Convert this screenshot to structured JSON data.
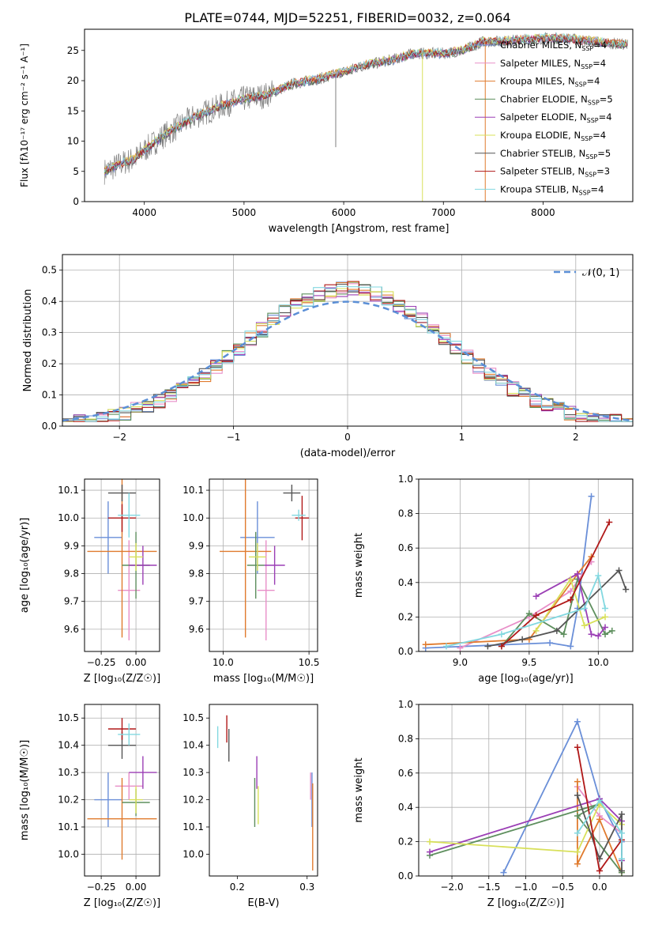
{
  "title": "PLATE=0744, MJD=52251, FIBERID=0032, z=0.064",
  "series": [
    {
      "name": "Chabrier MILES",
      "nssp": "4",
      "color": "#6a8fd8"
    },
    {
      "name": "Salpeter MILES",
      "nssp": "4",
      "color": "#e88fc8"
    },
    {
      "name": "Kroupa MILES",
      "nssp": "4",
      "color": "#e07b2e"
    },
    {
      "name": "Chabrier ELODIE",
      "nssp": "5",
      "color": "#5e8f5e"
    },
    {
      "name": "Salpeter ELODIE",
      "nssp": "4",
      "color": "#9b3fb5"
    },
    {
      "name": "Kroupa ELODIE",
      "nssp": "4",
      "color": "#d8e05a"
    },
    {
      "name": "Chabrier STELIB",
      "nssp": "5",
      "color": "#555555"
    },
    {
      "name": "Salpeter STELIB",
      "nssp": "3",
      "color": "#b01818"
    },
    {
      "name": "Kroupa STELIB",
      "nssp": "4",
      "color": "#82d8e0"
    }
  ],
  "chart_data": [
    {
      "id": "spectrum",
      "type": "line",
      "xlabel": "wavelength [Angstrom, rest frame]",
      "ylabel": "Flux [fλ10⁻¹⁷ erg cm⁻² s⁻¹ A⁻¹]",
      "xlim": [
        3400,
        8900
      ],
      "ylim": [
        0,
        28.5
      ],
      "xticks": [
        4000,
        5000,
        6000,
        7000,
        8000
      ],
      "yticks": [
        0,
        5,
        10,
        15,
        20,
        25
      ],
      "grid": false,
      "legend": "right",
      "continuum": {
        "x": [
          3600,
          3800,
          3900,
          4000,
          4200,
          4500,
          4800,
          5000,
          5200,
          5500,
          5800,
          6000,
          6200,
          6500,
          6700,
          7000,
          7200,
          7400,
          7600,
          7800,
          8000,
          8200,
          8500,
          8800
        ],
        "y": [
          5,
          6.5,
          7,
          8.5,
          11,
          14,
          16,
          17,
          17.5,
          19.5,
          20.5,
          21.5,
          22.5,
          23.5,
          24.5,
          24.5,
          25,
          26.5,
          26.5,
          26.8,
          27,
          27,
          26.5,
          26
        ]
      },
      "dips": [
        {
          "x": 5920,
          "y": 9
        },
        {
          "x": 6790,
          "y": 0
        },
        {
          "x": 7420,
          "y": 0
        }
      ]
    },
    {
      "id": "residuals",
      "type": "histogram",
      "xlabel": "(data-model)/error",
      "ylabel": "Normed distribution",
      "xlim": [
        -2.5,
        2.5
      ],
      "ylim": [
        0,
        0.55
      ],
      "xticks": [
        -2,
        -1,
        0,
        1,
        2
      ],
      "yticks": [
        0.0,
        0.1,
        0.2,
        0.3,
        0.4,
        0.5
      ],
      "grid": true,
      "legend": "top-right",
      "legend_label": "𝒩(0, 1)",
      "bin_width": 0.1,
      "peak": 0.44
    },
    {
      "id": "age-vs-Z",
      "type": "errorbar",
      "xlabel": "Z [log₁₀(Z/Z☉)]",
      "ylabel": "age  [log₁₀(age/yr)]",
      "xlim": [
        -0.37,
        0.17
      ],
      "ylim": [
        9.52,
        10.14
      ],
      "xticks": [
        -0.25,
        0.0
      ],
      "yticks": [
        9.6,
        9.7,
        9.8,
        9.9,
        10.0,
        10.1
      ],
      "grid": true,
      "points": [
        {
          "x": -0.2,
          "xerr": 0.1,
          "y": 9.93,
          "yerr": 0.13
        },
        {
          "x": -0.05,
          "xerr": 0.08,
          "y": 9.74,
          "yerr": 0.18
        },
        {
          "x": -0.1,
          "xerr": 0.25,
          "y": 9.88,
          "yerr": 0.31
        },
        {
          "x": 0.0,
          "xerr": 0.1,
          "y": 9.83,
          "yerr": 0.12
        },
        {
          "x": 0.05,
          "xerr": 0.1,
          "y": 9.83,
          "yerr": 0.07
        },
        {
          "x": 0.0,
          "xerr": 0.05,
          "y": 9.86,
          "yerr": 0.05
        },
        {
          "x": -0.1,
          "xerr": 0.1,
          "y": 10.09,
          "yerr": 0.03
        },
        {
          "x": -0.1,
          "xerr": 0.1,
          "y": 10.0,
          "yerr": 0.05
        },
        {
          "x": -0.05,
          "xerr": 0.08,
          "y": 10.01,
          "yerr": 0.08
        }
      ]
    },
    {
      "id": "age-vs-mass",
      "type": "errorbar",
      "xlabel": "mass [log₁₀(M/M☉)]",
      "ylabel": "",
      "xlim": [
        9.92,
        10.55
      ],
      "ylim": [
        9.52,
        10.14
      ],
      "xticks": [
        10.0,
        10.5
      ],
      "yticks": [
        9.6,
        9.7,
        9.8,
        9.9,
        10.0,
        10.1
      ],
      "grid": true,
      "points": [
        {
          "x": 10.2,
          "xerr": 0.1,
          "y": 9.93,
          "yerr": 0.13
        },
        {
          "x": 10.25,
          "xerr": 0.05,
          "y": 9.74,
          "yerr": 0.18
        },
        {
          "x": 10.13,
          "xerr": 0.15,
          "y": 9.88,
          "yerr": 0.31
        },
        {
          "x": 10.19,
          "xerr": 0.05,
          "y": 9.83,
          "yerr": 0.12
        },
        {
          "x": 10.3,
          "xerr": 0.06,
          "y": 9.83,
          "yerr": 0.07
        },
        {
          "x": 10.2,
          "xerr": 0.05,
          "y": 9.86,
          "yerr": 0.05
        },
        {
          "x": 10.4,
          "xerr": 0.05,
          "y": 10.09,
          "yerr": 0.03
        },
        {
          "x": 10.46,
          "xerr": 0.04,
          "y": 10.0,
          "yerr": 0.08
        },
        {
          "x": 10.44,
          "xerr": 0.04,
          "y": 10.01,
          "yerr": 0.02
        }
      ]
    },
    {
      "id": "weight-vs-age",
      "type": "line",
      "xlabel": "age  [log₁₀(age/yr)]",
      "ylabel": "mass weight",
      "xlim": [
        8.7,
        10.25
      ],
      "ylim": [
        0,
        1.0
      ],
      "xticks": [
        9.0,
        9.5,
        10.0
      ],
      "yticks": [
        0.0,
        0.2,
        0.4,
        0.6,
        0.8,
        1.0
      ],
      "grid": true,
      "lines": [
        {
          "x": [
            8.75,
            9.65,
            9.8,
            9.85,
            9.95
          ],
          "y": [
            0.02,
            0.05,
            0.03,
            0.25,
            0.9
          ]
        },
        {
          "x": [
            9.0,
            9.5,
            9.8,
            9.95
          ],
          "y": [
            0.02,
            0.2,
            0.35,
            0.52
          ]
        },
        {
          "x": [
            8.75,
            9.5,
            9.85,
            9.95
          ],
          "y": [
            0.04,
            0.07,
            0.45,
            0.55
          ]
        },
        {
          "x": [
            9.3,
            9.5,
            9.75,
            9.85,
            10.05,
            10.1
          ],
          "y": [
            0.03,
            0.22,
            0.1,
            0.42,
            0.1,
            0.12
          ]
        },
        {
          "x": [
            9.55,
            9.85,
            9.95,
            10.0,
            10.05
          ],
          "y": [
            0.32,
            0.45,
            0.1,
            0.09,
            0.14
          ]
        },
        {
          "x": [
            9.55,
            9.8,
            9.9,
            10.05
          ],
          "y": [
            0.12,
            0.42,
            0.15,
            0.2
          ]
        },
        {
          "x": [
            9.2,
            9.45,
            9.7,
            10.15,
            10.2
          ],
          "y": [
            0.03,
            0.07,
            0.12,
            0.47,
            0.36
          ]
        },
        {
          "x": [
            9.3,
            9.55,
            9.8,
            10.08
          ],
          "y": [
            0.03,
            0.21,
            0.3,
            0.75
          ]
        },
        {
          "x": [
            8.9,
            9.3,
            9.9,
            10.0,
            10.05
          ],
          "y": [
            0.03,
            0.1,
            0.25,
            0.44,
            0.25
          ]
        }
      ]
    },
    {
      "id": "mass-vs-Z",
      "type": "errorbar",
      "xlabel": "Z [log₁₀(Z/Z☉)]",
      "ylabel": "mass [log₁₀(M/M☉)]",
      "xlim": [
        -0.37,
        0.17
      ],
      "ylim": [
        9.92,
        10.55
      ],
      "xticks": [
        -0.25,
        0.0
      ],
      "yticks": [
        10.0,
        10.1,
        10.2,
        10.3,
        10.4,
        10.5
      ],
      "grid": true,
      "points": [
        {
          "x": -0.2,
          "xerr": 0.1,
          "y": 10.2,
          "yerr": 0.1
        },
        {
          "x": -0.05,
          "xerr": 0.1,
          "y": 10.25,
          "yerr": 0.05
        },
        {
          "x": -0.1,
          "xerr": 0.25,
          "y": 10.13,
          "yerr": 0.15
        },
        {
          "x": 0.0,
          "xerr": 0.1,
          "y": 10.19,
          "yerr": 0.05
        },
        {
          "x": 0.05,
          "xerr": 0.1,
          "y": 10.3,
          "yerr": 0.06
        },
        {
          "x": 0.0,
          "xerr": 0.05,
          "y": 10.2,
          "yerr": 0.05
        },
        {
          "x": -0.1,
          "xerr": 0.1,
          "y": 10.4,
          "yerr": 0.05
        },
        {
          "x": -0.1,
          "xerr": 0.1,
          "y": 10.46,
          "yerr": 0.04
        },
        {
          "x": -0.05,
          "xerr": 0.08,
          "y": 10.44,
          "yerr": 0.04
        }
      ]
    },
    {
      "id": "mass-vs-EBV",
      "type": "errorbar",
      "xlabel": "E(B-V)",
      "ylabel": "",
      "xlim": [
        0.16,
        0.315
      ],
      "ylim": [
        9.92,
        10.55
      ],
      "xticks": [
        0.2,
        0.3
      ],
      "yticks": [
        10.0,
        10.1,
        10.2,
        10.3,
        10.4,
        10.5
      ],
      "grid": false,
      "points": [
        {
          "x": 0.307,
          "y": 10.2,
          "yerr": 0.1
        },
        {
          "x": 0.305,
          "y": 10.25,
          "yerr": 0.05
        },
        {
          "x": 0.308,
          "y": 10.1,
          "yerr": 0.16
        },
        {
          "x": 0.225,
          "y": 10.19,
          "yerr": 0.09
        },
        {
          "x": 0.228,
          "y": 10.3,
          "yerr": 0.06
        },
        {
          "x": 0.23,
          "y": 10.18,
          "yerr": 0.07
        },
        {
          "x": 0.188,
          "y": 10.4,
          "yerr": 0.06
        },
        {
          "x": 0.185,
          "y": 10.46,
          "yerr": 0.05
        },
        {
          "x": 0.172,
          "y": 10.43,
          "yerr": 0.04
        }
      ]
    },
    {
      "id": "weight-vs-Z",
      "type": "line",
      "xlabel": "Z [log₁₀(Z/Z☉)]",
      "ylabel": "mass weight",
      "xlim": [
        -2.45,
        0.45
      ],
      "ylim": [
        0,
        1.0
      ],
      "xticks": [
        -2.0,
        -1.5,
        -1.0,
        -0.5,
        0.0
      ],
      "yticks": [
        0.0,
        0.2,
        0.4,
        0.6,
        0.8,
        1.0
      ],
      "grid": true,
      "lines": [
        {
          "x": [
            -1.3,
            -0.3,
            0.0,
            0.3
          ],
          "y": [
            0.02,
            0.9,
            0.45,
            0.2
          ]
        },
        {
          "x": [
            -0.3,
            0.0,
            0.3
          ],
          "y": [
            0.52,
            0.35,
            0.25
          ]
        },
        {
          "x": [
            -0.3,
            -0.3,
            0.0,
            0.3
          ],
          "y": [
            0.55,
            0.07,
            0.33,
            0.02
          ]
        },
        {
          "x": [
            -2.3,
            0.0,
            -0.3,
            0.3
          ],
          "y": [
            0.12,
            0.42,
            0.35,
            0.02
          ]
        },
        {
          "x": [
            -2.3,
            0.0,
            0.3,
            0.3
          ],
          "y": [
            0.14,
            0.45,
            0.32,
            0.09
          ]
        },
        {
          "x": [
            -2.3,
            -0.3,
            0.0,
            0.3
          ],
          "y": [
            0.2,
            0.14,
            0.42,
            0.3
          ]
        },
        {
          "x": [
            -0.3,
            0.0,
            0.3,
            0.3
          ],
          "y": [
            0.47,
            0.1,
            0.36,
            0.03
          ]
        },
        {
          "x": [
            -0.3,
            0.0,
            0.3
          ],
          "y": [
            0.75,
            0.03,
            0.21
          ]
        },
        {
          "x": [
            -0.3,
            0.0,
            0.3,
            0.3
          ],
          "y": [
            0.25,
            0.44,
            0.25,
            0.1
          ]
        }
      ]
    }
  ]
}
